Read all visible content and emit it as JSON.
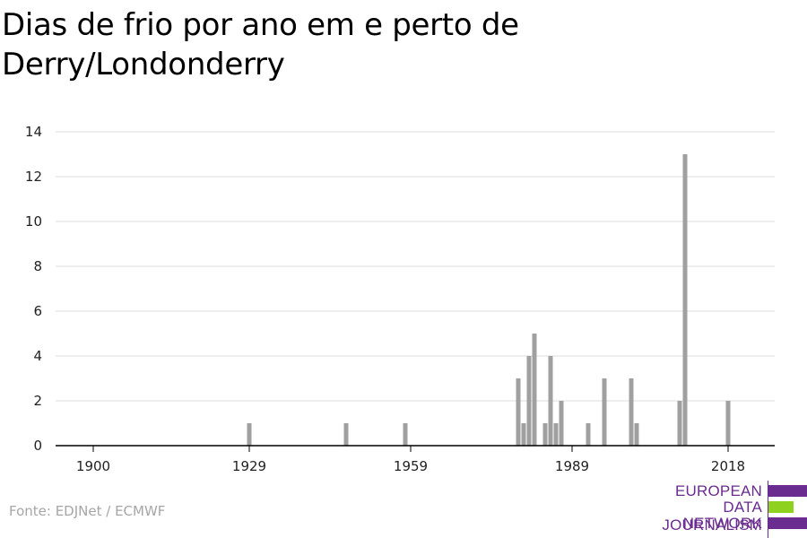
{
  "title_line1": "Dias de frio por ano em e perto de",
  "title_line2": "Derry/Londonderry",
  "source": "Fonte: EDJNet / ECMWF",
  "logo": {
    "line1": "EUROPEAN",
    "line2": "DATA JOURNALISM",
    "line3": "NETWORK",
    "colors": {
      "purple": "#6a2c8e",
      "green": "#8ed11f"
    }
  },
  "colors": {
    "bar": "#a0a0a0",
    "grid": "#dcdcdc",
    "axis": "#000000",
    "label": "#222222"
  },
  "chart_data": {
    "type": "bar",
    "title": "Dias de frio por ano em e perto de Derry/Londonderry",
    "xlabel": "",
    "ylabel": "",
    "ylim": [
      0,
      14
    ],
    "yticks": [
      0,
      2,
      4,
      6,
      8,
      10,
      12,
      14
    ],
    "xlim": [
      1900,
      2019
    ],
    "xticks": [
      1900,
      1929,
      1959,
      1989,
      2018
    ],
    "grid": true,
    "x": [
      1929,
      1947,
      1958,
      1979,
      1980,
      1981,
      1982,
      1984,
      1985,
      1986,
      1987,
      1992,
      1995,
      2000,
      2001,
      2009,
      2010,
      2018
    ],
    "values": [
      1,
      1,
      1,
      3,
      1,
      4,
      5,
      1,
      4,
      1,
      2,
      1,
      3,
      3,
      1,
      2,
      13,
      2
    ]
  }
}
